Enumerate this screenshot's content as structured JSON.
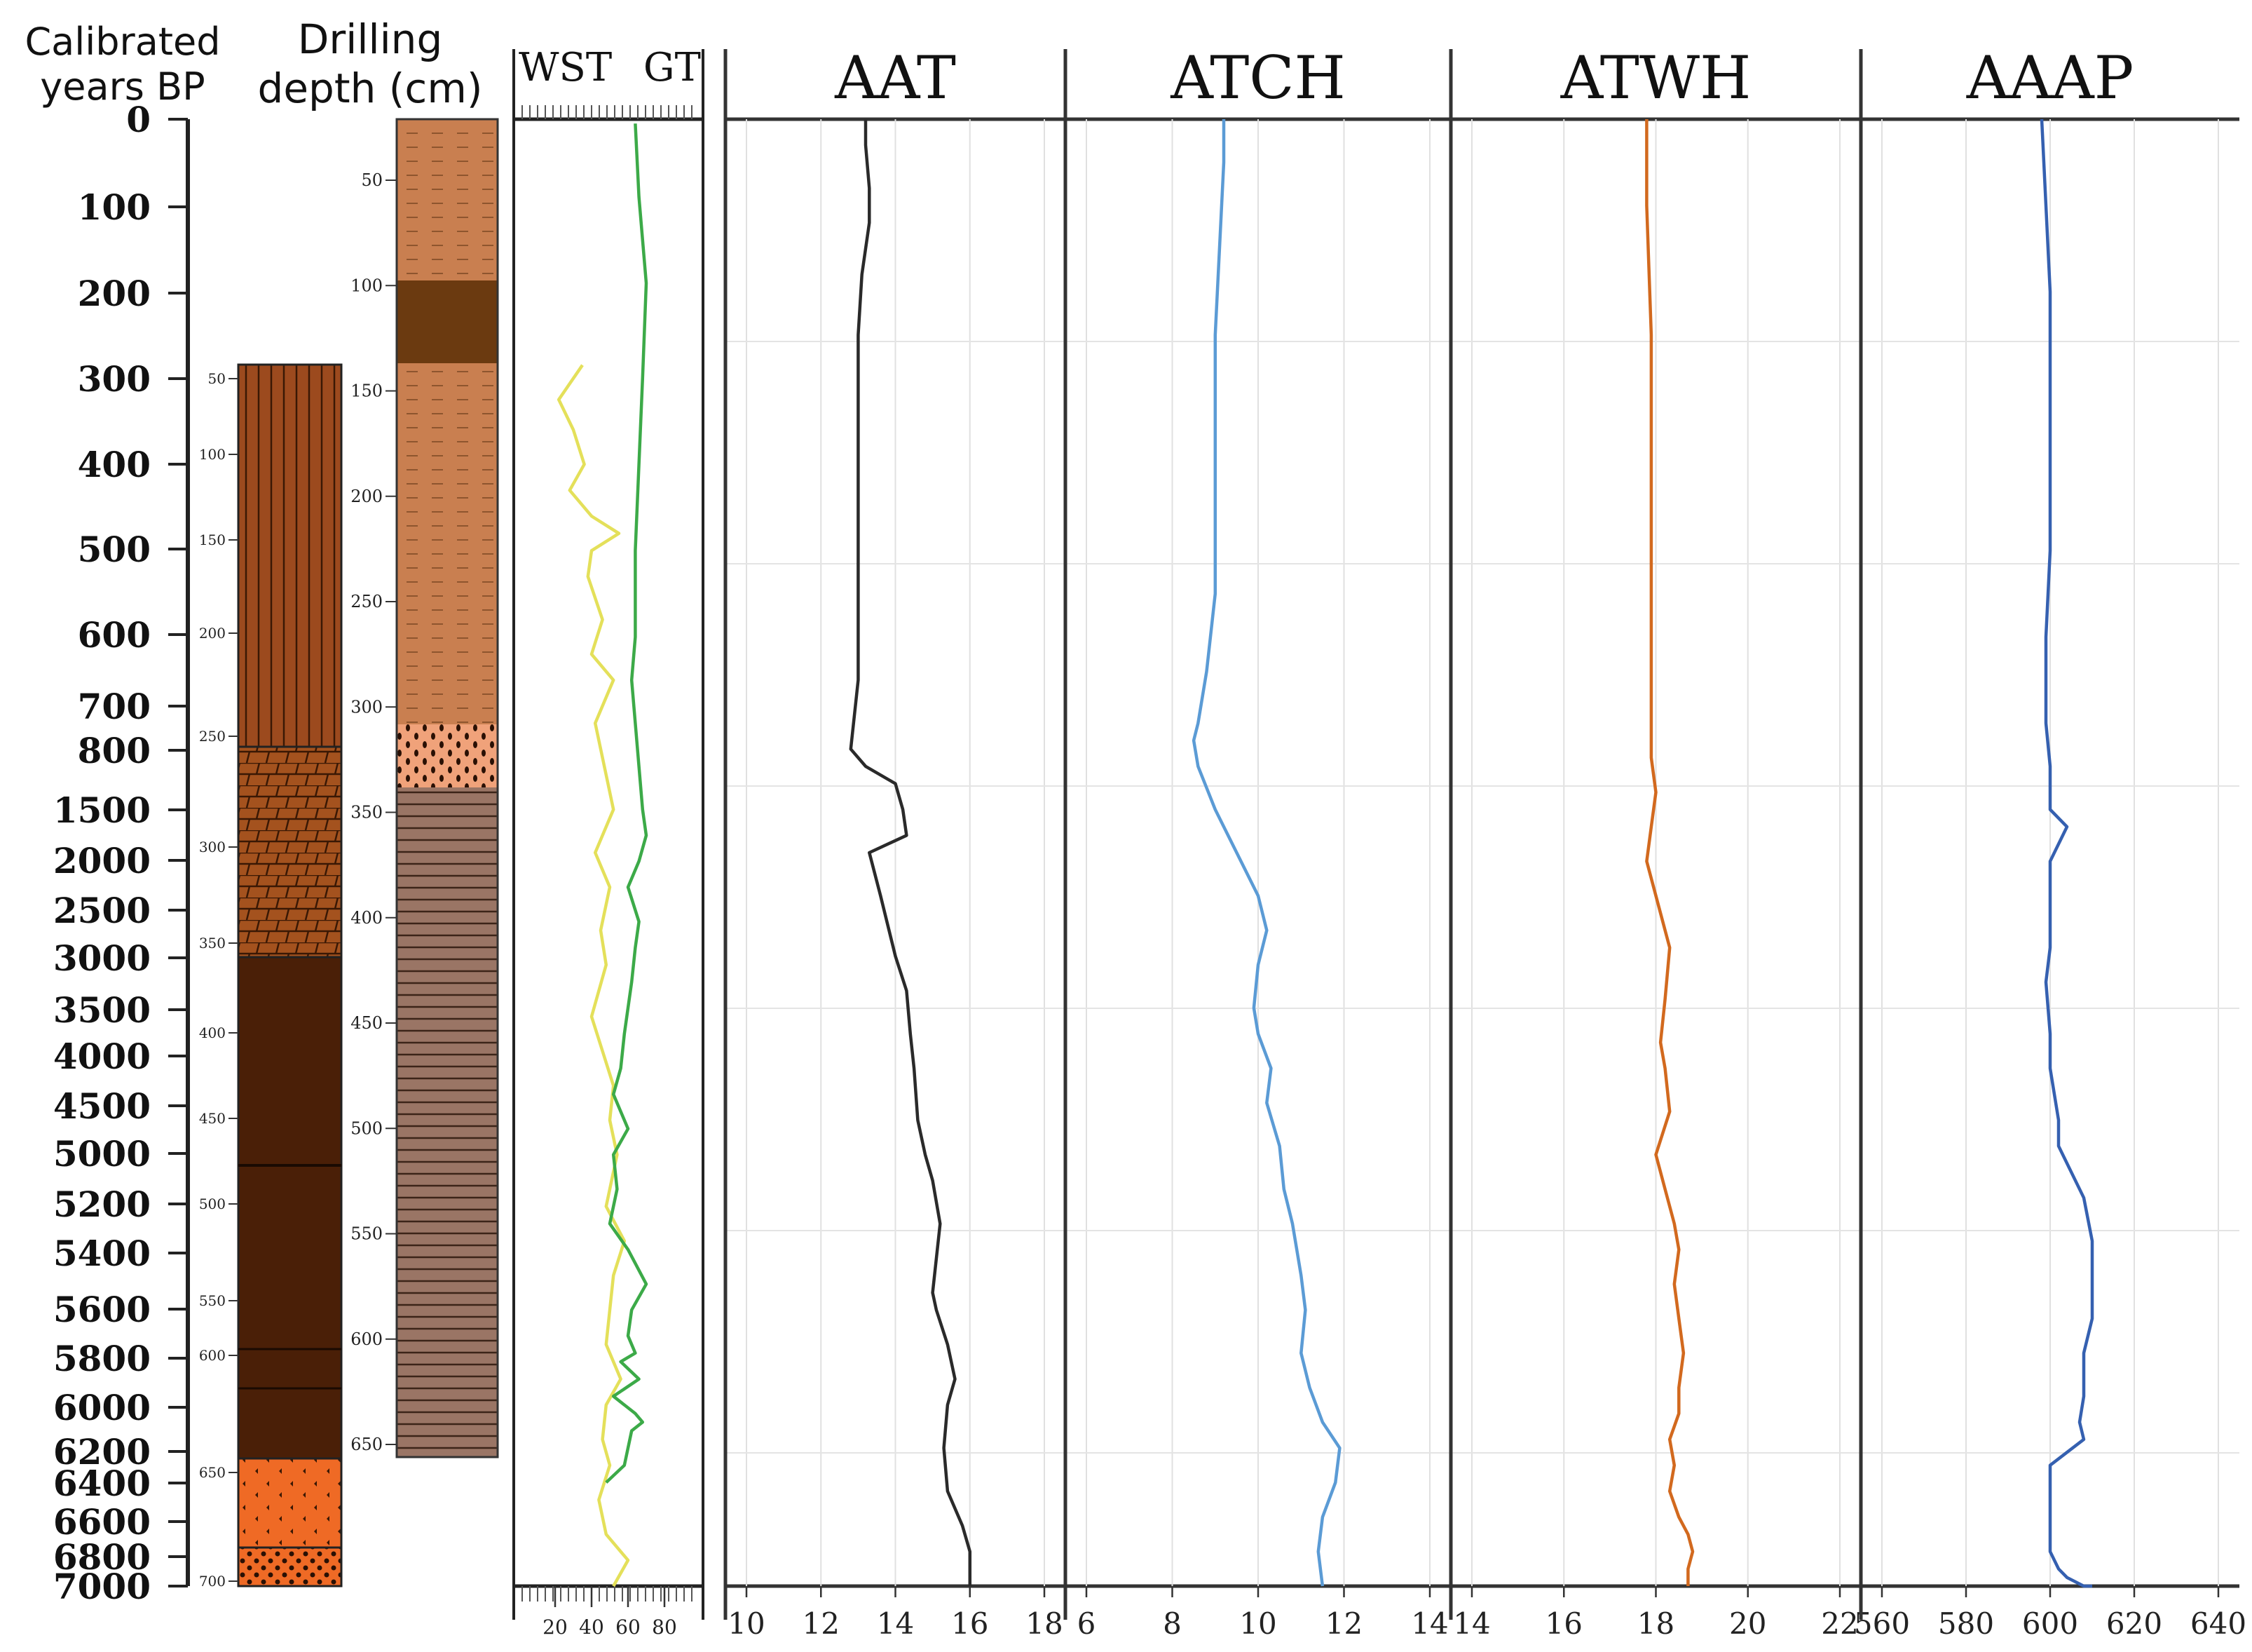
{
  "headers": {
    "age": [
      "Calibrated",
      "years BP"
    ],
    "depth": [
      "Drilling",
      "depth (cm)"
    ],
    "wst": "WST",
    "gt": "GT"
  },
  "age_axis": {
    "ticks": [
      "0",
      "100",
      "200",
      "300",
      "400",
      "500",
      "600",
      "700",
      "800",
      "1500",
      "2000",
      "2500",
      "3000",
      "3500",
      "4000",
      "4500",
      "5000",
      "5200",
      "5400",
      "5600",
      "5800",
      "6000",
      "6200",
      "6400",
      "6600",
      "6800",
      "7000"
    ],
    "inner_depth_ticks": [
      "50",
      "100",
      "150",
      "200",
      "250",
      "300",
      "350",
      "400",
      "450",
      "500",
      "550",
      "600",
      "650",
      "700"
    ]
  },
  "depth_axis": {
    "ticks": [
      "50",
      "100",
      "150",
      "200",
      "250",
      "300",
      "350",
      "400",
      "450",
      "500",
      "550",
      "600",
      "650"
    ]
  },
  "wst_gt_axis": {
    "ticks": [
      "20",
      "40",
      "60",
      "80"
    ]
  },
  "colors": {
    "lith_brown": "#9c4a1e",
    "lith_dark": "#4a1f07",
    "lith_orange": "#ef6a25",
    "sed_tan": "#c97f50",
    "sed_dark": "#6b3a10",
    "sed_peach": "#f0a27a",
    "sed_grey": "#9a7565",
    "wst": "#e4e05a",
    "gt": "#3caa48",
    "aat": "#2a2a2a",
    "atch": "#5b9bd5",
    "atwh": "#d2691e",
    "aaap": "#3560b0"
  },
  "chart_data": [
    {
      "type": "line",
      "title": "AAT",
      "xlim": [
        10,
        18
      ],
      "xticks": [
        "10",
        "12",
        "14",
        "16",
        "18"
      ],
      "color_key": "aat",
      "x": [
        13.2,
        13.2,
        13.3,
        13.3,
        13.1,
        13.0,
        13.0,
        13.0,
        13.0,
        13.0,
        12.8,
        13.2,
        14.0,
        14.2,
        14.3,
        13.3,
        13.6,
        14.0,
        14.3,
        14.4,
        14.5,
        14.6,
        14.8,
        15.0,
        15.2,
        15.0,
        15.1,
        15.4,
        15.6,
        15.4,
        15.3,
        15.4,
        15.8,
        16.0,
        16.0
      ],
      "y": [
        0,
        0.3,
        0.8,
        1.2,
        1.8,
        2.5,
        3.5,
        4.5,
        5.5,
        6.5,
        7.3,
        7.5,
        7.7,
        8.0,
        8.3,
        8.5,
        9.0,
        9.7,
        10.1,
        10.6,
        11.0,
        11.6,
        12.0,
        12.3,
        12.8,
        13.6,
        13.8,
        14.2,
        14.6,
        14.9,
        15.4,
        15.9,
        16.3,
        16.6,
        17.0
      ]
    },
    {
      "type": "line",
      "title": "ATCH",
      "xlim": [
        6,
        14
      ],
      "xticks": [
        "6",
        "8",
        "10",
        "12",
        "14"
      ],
      "color_key": "atch",
      "x": [
        9.2,
        9.2,
        9.1,
        9.0,
        9.0,
        9.0,
        9.0,
        8.8,
        8.6,
        8.5,
        8.6,
        9.0,
        9.5,
        10.0,
        10.2,
        10.0,
        9.9,
        10.0,
        10.3,
        10.2,
        10.5,
        10.6,
        10.8,
        11.0,
        11.1,
        11.0,
        11.2,
        11.5,
        11.9,
        11.8,
        11.5,
        11.4,
        11.5
      ],
      "y": [
        0,
        0.5,
        1.5,
        2.5,
        3.5,
        4.5,
        5.5,
        6.4,
        7.0,
        7.2,
        7.5,
        8.0,
        8.5,
        9.0,
        9.4,
        9.8,
        10.3,
        10.6,
        11.0,
        11.4,
        11.9,
        12.4,
        12.8,
        13.4,
        13.8,
        14.3,
        14.7,
        15.1,
        15.4,
        15.8,
        16.2,
        16.6,
        17.0
      ]
    },
    {
      "type": "line",
      "title": "ATWH",
      "xlim": [
        14,
        22
      ],
      "xticks": [
        "14",
        "16",
        "18",
        "20",
        "22"
      ],
      "color_key": "atwh",
      "x": [
        17.8,
        17.8,
        17.9,
        17.9,
        17.9,
        17.9,
        17.9,
        18.0,
        17.9,
        17.8,
        18.0,
        18.3,
        18.2,
        18.1,
        18.2,
        18.3,
        18.0,
        18.2,
        18.4,
        18.5,
        18.4,
        18.5,
        18.6,
        18.5,
        18.5,
        18.3,
        18.4,
        18.3,
        18.5,
        18.7,
        18.8,
        18.7,
        18.7,
        18.7
      ],
      "y": [
        0,
        1,
        2.5,
        4,
        5.5,
        6.5,
        7.4,
        7.8,
        8.2,
        8.6,
        9.0,
        9.6,
        10.2,
        10.7,
        11.0,
        11.5,
        12.0,
        12.4,
        12.8,
        13.1,
        13.5,
        13.9,
        14.3,
        14.7,
        15.0,
        15.3,
        15.6,
        15.9,
        16.2,
        16.4,
        16.6,
        16.8,
        16.9,
        17.0
      ]
    },
    {
      "type": "line",
      "title": "AAAP",
      "xlim": [
        560,
        640
      ],
      "xticks": [
        "560",
        "580",
        "600",
        "620",
        "640"
      ],
      "color_key": "aaap",
      "x": [
        598,
        599,
        600,
        600,
        600,
        600,
        599,
        599,
        600,
        600,
        604,
        600,
        600,
        600,
        599,
        600,
        600,
        602,
        602,
        608,
        610,
        610,
        610,
        608,
        608,
        607,
        608,
        600,
        600,
        600,
        600,
        602,
        604,
        608,
        610
      ],
      "y": [
        0,
        1,
        2,
        3,
        4,
        5,
        6,
        7,
        7.5,
        8.0,
        8.2,
        8.6,
        9.0,
        9.6,
        10.0,
        10.6,
        11.0,
        11.6,
        11.9,
        12.5,
        13.0,
        13.5,
        13.9,
        14.3,
        14.8,
        15.1,
        15.3,
        15.6,
        16.0,
        16.4,
        16.6,
        16.8,
        16.9,
        17.0,
        17.0
      ]
    },
    {
      "type": "line",
      "title": "WST",
      "xlim": [
        0,
        100
      ],
      "xticks": [
        "20",
        "40",
        "60",
        "80"
      ],
      "color_key": "wst",
      "x": [
        35,
        22,
        30,
        36,
        28,
        40,
        55,
        40,
        38,
        46,
        40,
        52,
        42,
        48,
        52,
        42,
        50,
        45,
        48,
        40,
        46,
        52,
        50,
        54,
        48,
        58,
        52,
        50,
        48,
        56,
        48,
        46,
        50,
        44,
        48,
        60,
        52
      ],
      "y": [
        2.85,
        3.25,
        3.6,
        4.0,
        4.3,
        4.6,
        4.8,
        5.0,
        5.3,
        5.8,
        6.2,
        6.5,
        7.0,
        7.6,
        8.0,
        8.5,
        8.9,
        9.4,
        9.8,
        10.4,
        10.8,
        11.2,
        11.6,
        12.0,
        12.6,
        13.0,
        13.4,
        13.8,
        14.2,
        14.6,
        14.9,
        15.3,
        15.6,
        16.0,
        16.4,
        16.7,
        17.0
      ]
    },
    {
      "type": "line",
      "title": "GT",
      "xlim": [
        0,
        100
      ],
      "xticks": [
        "20",
        "40",
        "60",
        "80"
      ],
      "color_key": "gt",
      "x": [
        64,
        66,
        70,
        68,
        66,
        64,
        64,
        62,
        64,
        66,
        68,
        70,
        66,
        60,
        66,
        64,
        62,
        60,
        58,
        56,
        52,
        60,
        52,
        54,
        50,
        60,
        70,
        62,
        60,
        64,
        56,
        66,
        52,
        64,
        68,
        62,
        58,
        48
      ],
      "y": [
        0.05,
        0.9,
        1.9,
        3.0,
        4.0,
        5.0,
        6.0,
        6.5,
        7.0,
        7.5,
        8.0,
        8.3,
        8.6,
        8.9,
        9.3,
        9.6,
        10.0,
        10.3,
        10.6,
        11.0,
        11.3,
        11.7,
        12.0,
        12.4,
        12.8,
        13.1,
        13.5,
        13.8,
        14.1,
        14.3,
        14.4,
        14.6,
        14.8,
        15.0,
        15.1,
        15.2,
        15.6,
        15.8
      ]
    }
  ]
}
